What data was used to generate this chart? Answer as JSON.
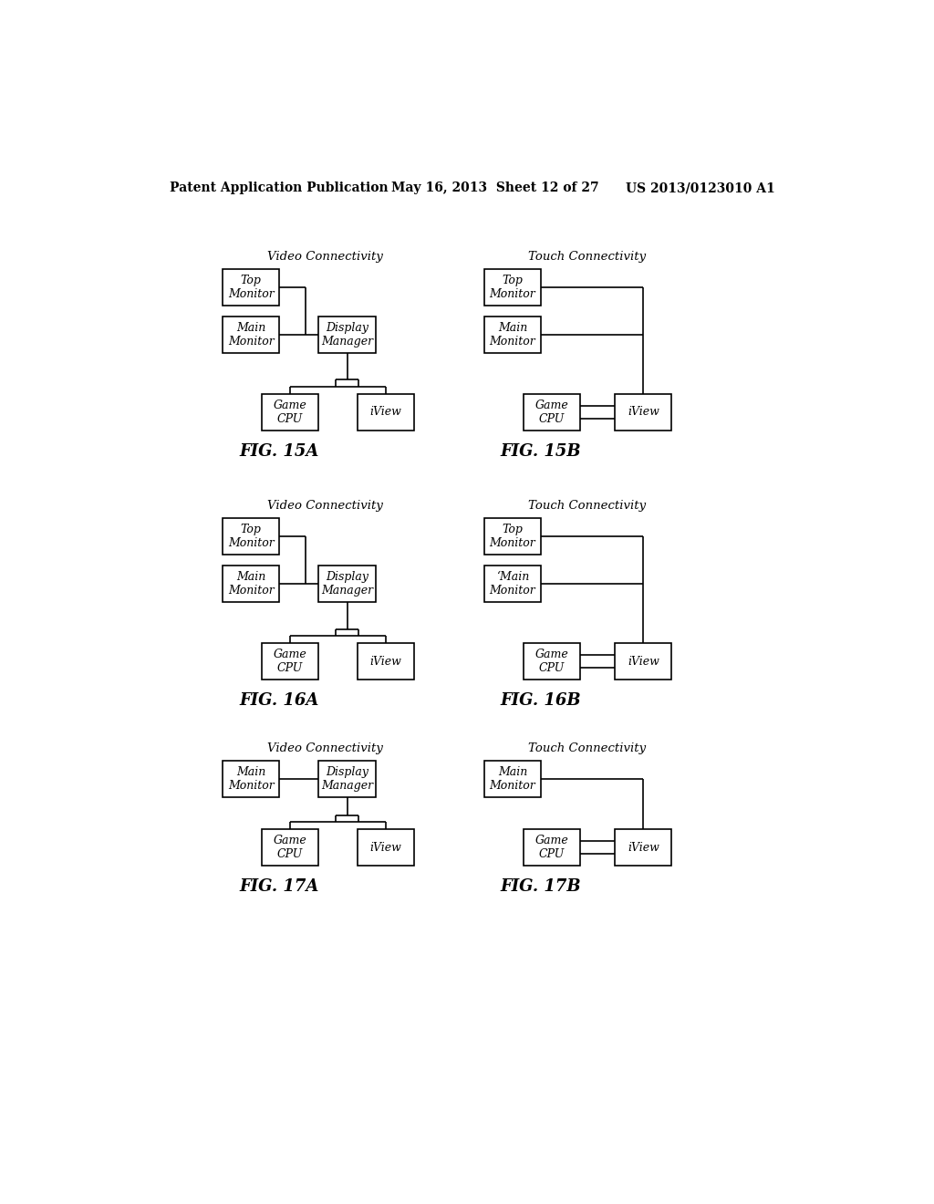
{
  "header_left": "Patent Application Publication",
  "header_mid": "May 16, 2013  Sheet 12 of 27",
  "header_right": "US 2013/0123010 A1",
  "background": "#ffffff",
  "diagrams": [
    {
      "id": "15A",
      "title": "Video Connectivity",
      "caption": "FIG. 15A",
      "col": 0,
      "row": 0,
      "type": "video",
      "has_top": true
    },
    {
      "id": "15B",
      "title": "Touch Connectivity",
      "caption": "FIG. 15B",
      "col": 1,
      "row": 0,
      "type": "touch",
      "has_top": true,
      "main_label": "Main\nMonitor"
    },
    {
      "id": "16A",
      "title": "Video Connectivity",
      "caption": "FIG. 16A",
      "col": 0,
      "row": 1,
      "type": "video",
      "has_top": true
    },
    {
      "id": "16B",
      "title": "Touch Connectivity",
      "caption": "FIG. 16B",
      "col": 1,
      "row": 1,
      "type": "touch",
      "has_top": true,
      "main_label": "‘Main\nMonitor"
    },
    {
      "id": "17A",
      "title": "Video Connectivity",
      "caption": "FIG. 17A",
      "col": 0,
      "row": 2,
      "type": "video",
      "has_top": false
    },
    {
      "id": "17B",
      "title": "Touch Connectivity",
      "caption": "FIG. 17B",
      "col": 1,
      "row": 2,
      "type": "touch",
      "has_top": false,
      "main_label": "Main\nMonitor"
    }
  ]
}
